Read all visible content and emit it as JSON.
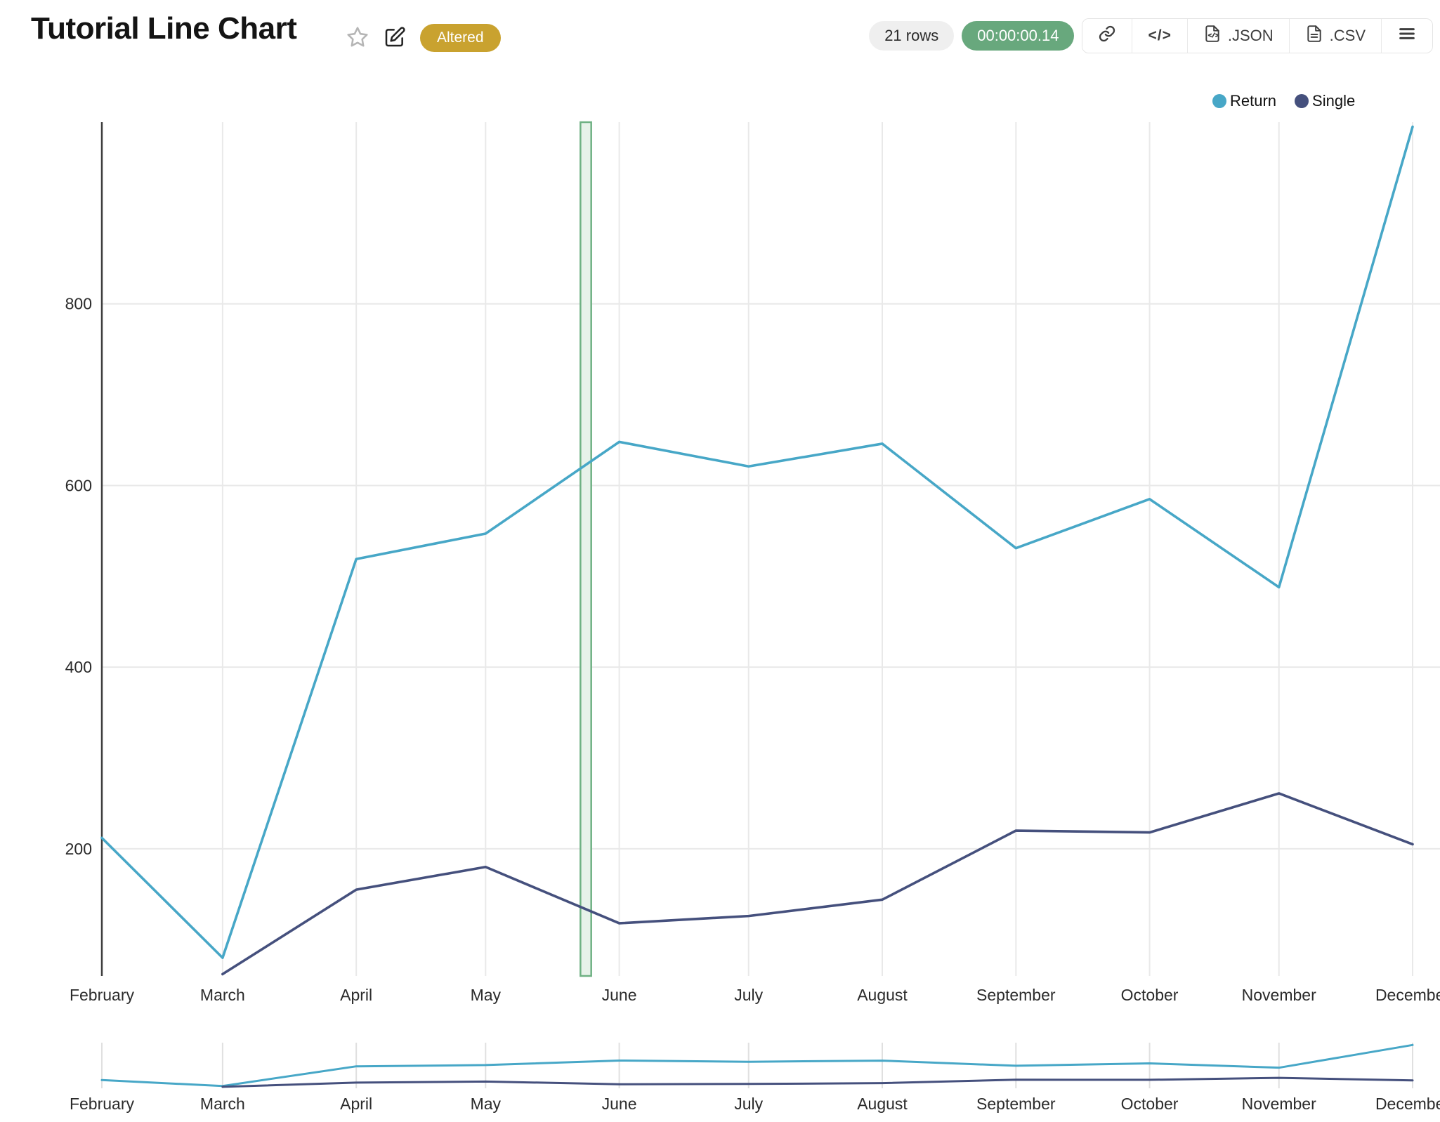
{
  "header": {
    "title": "Tutorial Line Chart",
    "status_badge": "Altered",
    "status_badge_color": "#c9a22f"
  },
  "toolbar": {
    "rows_label": "21 rows",
    "duration_label": "00:00:00.14",
    "duration_color": "#68a87d",
    "code_label": "</>",
    "json_label": ".JSON",
    "csv_label": ".CSV"
  },
  "legend": [
    {
      "name": "Return",
      "color": "#47a7c7"
    },
    {
      "name": "Single",
      "color": "#45507d"
    }
  ],
  "chart_data": {
    "type": "line",
    "x_type": "time",
    "categories": [
      "February",
      "March",
      "April",
      "May",
      "June",
      "July",
      "August",
      "September",
      "October",
      "November",
      "December"
    ],
    "month_day_offsets": [
      0,
      28,
      59,
      89,
      120,
      150,
      181,
      212,
      243,
      273,
      304
    ],
    "series": [
      {
        "name": "Return",
        "color": "#47a7c7",
        "values": [
          212,
          80,
          519,
          547,
          648,
          621,
          646,
          531,
          585,
          488,
          995
        ]
      },
      {
        "name": "Single",
        "color": "#45507d",
        "values": [
          null,
          62,
          155,
          180,
          118,
          126,
          144,
          220,
          218,
          261,
          205
        ]
      }
    ],
    "ylim": [
      60,
      1000
    ],
    "yticks": [
      200,
      400,
      600,
      800
    ],
    "grid": true,
    "legend_position": "top-right",
    "highlight_region": {
      "from_day": 111,
      "to_day": 113.5,
      "fill": "#e7f2e9",
      "border": "#6fb183"
    },
    "mini_chart": true,
    "colors": {
      "gridline": "#e9e9e9",
      "axis_line": "#3f3f3f",
      "tick_text": "#2b2b2b",
      "mini_tick": "#e0e0e0"
    }
  }
}
